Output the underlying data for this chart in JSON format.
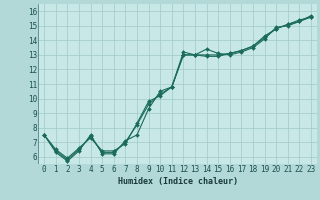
{
  "xlabel": "Humidex (Indice chaleur)",
  "background_color": "#b2d8d8",
  "plot_bg_color": "#c8e8e8",
  "grid_color": "#a0c8c8",
  "line_color": "#1a6b5a",
  "xlim": [
    -0.5,
    23.5
  ],
  "ylim": [
    5.5,
    16.5
  ],
  "xticks": [
    0,
    1,
    2,
    3,
    4,
    5,
    6,
    7,
    8,
    9,
    10,
    11,
    12,
    13,
    14,
    15,
    16,
    17,
    18,
    19,
    20,
    21,
    22,
    23
  ],
  "yticks": [
    6,
    7,
    8,
    9,
    10,
    11,
    12,
    13,
    14,
    15,
    16
  ],
  "series": [
    [
      7.5,
      6.3,
      5.7,
      6.4,
      7.5,
      6.2,
      6.2,
      7.1,
      7.5,
      9.3,
      10.5,
      10.8,
      13.2,
      13.0,
      13.4,
      13.1,
      13.0,
      13.2,
      13.5,
      14.1,
      14.9,
      15.0,
      15.3,
      15.7
    ],
    [
      7.5,
      6.4,
      5.8,
      6.5,
      7.4,
      6.3,
      6.3,
      7.0,
      8.2,
      9.6,
      10.3,
      10.8,
      13.0,
      13.0,
      13.0,
      13.0,
      13.1,
      13.3,
      13.6,
      14.2,
      14.8,
      15.1,
      15.3,
      15.6
    ],
    [
      7.5,
      6.5,
      5.9,
      6.6,
      7.3,
      6.4,
      6.4,
      6.9,
      8.3,
      9.8,
      10.2,
      10.8,
      13.0,
      13.0,
      12.9,
      12.9,
      13.1,
      13.3,
      13.6,
      14.3,
      14.8,
      15.1,
      15.4,
      15.6
    ]
  ],
  "marker": "D",
  "marker_size": 2.0,
  "linewidth": 0.8,
  "tick_fontsize": 5.5,
  "xlabel_fontsize": 6.0
}
